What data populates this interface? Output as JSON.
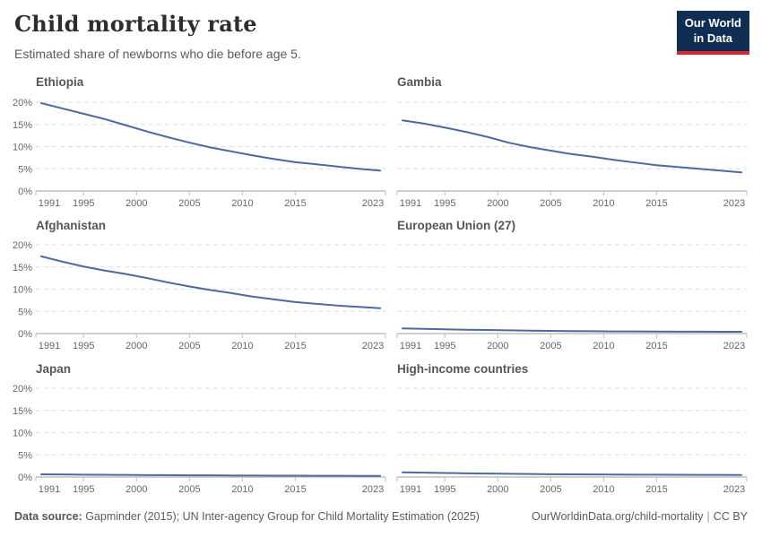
{
  "header": {
    "title": "Child mortality rate",
    "subtitle": "Estimated share of newborns who die before age 5.",
    "logo": {
      "line1": "Our World",
      "line2": "in Data"
    }
  },
  "axes": {
    "x_ticks": [
      1991,
      1995,
      2000,
      2005,
      2010,
      2015,
      2023
    ],
    "y_ticks": [
      "0%",
      "5%",
      "10%",
      "15%",
      "20%"
    ],
    "xlim": [
      1991,
      2023
    ],
    "ylim": [
      0,
      20
    ],
    "grid": "dashed horizontal gridlines, y labels only on left column"
  },
  "chart_data": [
    {
      "type": "line",
      "title": "Ethiopia",
      "unit": "percent",
      "x": [
        1991,
        1993,
        1995,
        1997,
        1999,
        2001,
        2003,
        2005,
        2007,
        2009,
        2011,
        2013,
        2015,
        2017,
        2019,
        2021,
        2023
      ],
      "y": [
        19.8,
        18.6,
        17.4,
        16.2,
        14.8,
        13.4,
        12.1,
        10.9,
        9.8,
        8.9,
        8.0,
        7.2,
        6.5,
        6.0,
        5.5,
        5.0,
        4.6
      ]
    },
    {
      "type": "line",
      "title": "Gambia",
      "unit": "percent",
      "x": [
        1991,
        1993,
        1995,
        1997,
        1999,
        2001,
        2003,
        2005,
        2007,
        2009,
        2011,
        2013,
        2015,
        2017,
        2019,
        2021,
        2023
      ],
      "y": [
        15.9,
        15.2,
        14.3,
        13.3,
        12.2,
        10.9,
        9.9,
        9.1,
        8.3,
        7.7,
        7.0,
        6.4,
        5.8,
        5.4,
        5.0,
        4.6,
        4.2
      ]
    },
    {
      "type": "line",
      "title": "Afghanistan",
      "unit": "percent",
      "x": [
        1991,
        1993,
        1995,
        1997,
        1999,
        2001,
        2003,
        2005,
        2007,
        2009,
        2011,
        2013,
        2015,
        2017,
        2019,
        2021,
        2023
      ],
      "y": [
        17.4,
        16.2,
        15.1,
        14.2,
        13.4,
        12.5,
        11.5,
        10.6,
        9.8,
        9.1,
        8.3,
        7.7,
        7.1,
        6.7,
        6.3,
        6.0,
        5.7
      ]
    },
    {
      "type": "line",
      "title": "European Union (27)",
      "unit": "percent",
      "x": [
        1991,
        1993,
        1995,
        1997,
        1999,
        2001,
        2003,
        2005,
        2007,
        2009,
        2011,
        2013,
        2015,
        2017,
        2019,
        2021,
        2023
      ],
      "y": [
        1.15,
        1.05,
        0.95,
        0.87,
        0.8,
        0.72,
        0.66,
        0.6,
        0.55,
        0.52,
        0.49,
        0.47,
        0.45,
        0.44,
        0.43,
        0.41,
        0.4
      ]
    },
    {
      "type": "line",
      "title": "Japan",
      "unit": "percent",
      "x": [
        1991,
        1993,
        1995,
        1997,
        1999,
        2001,
        2003,
        2005,
        2007,
        2009,
        2011,
        2013,
        2015,
        2017,
        2019,
        2021,
        2023
      ],
      "y": [
        0.6,
        0.57,
        0.53,
        0.5,
        0.47,
        0.44,
        0.42,
        0.39,
        0.37,
        0.34,
        0.33,
        0.31,
        0.3,
        0.29,
        0.28,
        0.26,
        0.25
      ]
    },
    {
      "type": "line",
      "title": "High-income countries",
      "unit": "percent",
      "x": [
        1991,
        1993,
        1995,
        1997,
        1999,
        2001,
        2003,
        2005,
        2007,
        2009,
        2011,
        2013,
        2015,
        2017,
        2019,
        2021,
        2023
      ],
      "y": [
        1.05,
        0.98,
        0.91,
        0.84,
        0.78,
        0.73,
        0.68,
        0.64,
        0.61,
        0.58,
        0.56,
        0.54,
        0.52,
        0.5,
        0.48,
        0.47,
        0.45
      ]
    }
  ],
  "colors": {
    "line": "#4c6a9c",
    "grid": "#dedede",
    "axis": "#c8c8c8",
    "tick_label": "#666666",
    "facet_title": "#565656",
    "logo_bg": "#102d54",
    "logo_red": "#e0262c"
  },
  "footer": {
    "source_label": "Data source:",
    "source_text": " Gapminder (2015); UN Inter-agency Group for Child Mortality Estimation (2025)",
    "url": "OurWorldinData.org/child-mortality",
    "separator": "|",
    "license": "CC BY"
  }
}
